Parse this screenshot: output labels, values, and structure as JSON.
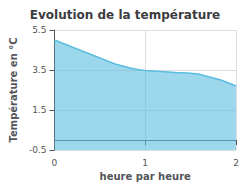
{
  "chart_data": {
    "type": "area",
    "title": "Evolution de la température",
    "xlabel": "heure par heure",
    "ylabel": "Température en °C",
    "xlim": [
      0,
      2
    ],
    "ylim": [
      -0.5,
      5.5
    ],
    "xticks": [
      0,
      1,
      2
    ],
    "yticks": [
      -0.5,
      1.5,
      3.5,
      5.5
    ],
    "x": [
      0.0,
      0.083,
      0.167,
      0.25,
      0.333,
      0.417,
      0.5,
      0.583,
      0.667,
      0.75,
      0.833,
      0.917,
      1.0,
      1.083,
      1.167,
      1.25,
      1.333,
      1.417,
      1.5,
      1.583,
      1.667,
      1.75,
      1.833,
      1.917,
      2.0
    ],
    "values": [
      5.0,
      4.85,
      4.7,
      4.55,
      4.4,
      4.25,
      4.1,
      3.95,
      3.8,
      3.7,
      3.6,
      3.52,
      3.48,
      3.45,
      3.42,
      3.4,
      3.38,
      3.36,
      3.34,
      3.3,
      3.2,
      3.1,
      3.0,
      2.85,
      2.7
    ],
    "color": "#5bbde0",
    "grid": true
  }
}
